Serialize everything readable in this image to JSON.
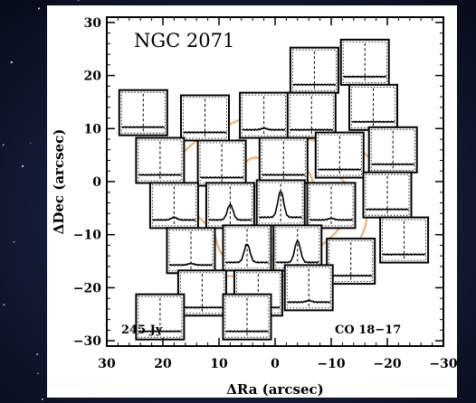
{
  "chart_data": {
    "type": "scatter",
    "title": "NGC 2071",
    "xlabel": "ΔRa (arcsec)",
    "ylabel": "ΔDec (arcsec)",
    "xlim": [
      30,
      -30
    ],
    "ylim": [
      -31,
      31
    ],
    "xticks": [
      30,
      20,
      10,
      0,
      -10,
      -20,
      -30
    ],
    "xtick_labels": [
      "30",
      "20",
      "10",
      "0",
      "−10",
      "−20",
      "−30"
    ],
    "yticks": [
      30,
      20,
      10,
      0,
      -10,
      -20,
      -30
    ],
    "ytick_labels": [
      "30",
      "20",
      "10",
      "0",
      "−10",
      "−20",
      "−30"
    ],
    "annotations": {
      "scale": "245 Jy",
      "line": "CO 18−17"
    },
    "contour_color": "#f0b070",
    "grid": false,
    "spectra_positions": [
      {
        "x": 23.5,
        "y": 13,
        "peak": 0
      },
      {
        "x": 12.5,
        "y": 12,
        "peak": 0
      },
      {
        "x": 2,
        "y": 12.5,
        "peak": 0.05
      },
      {
        "x": -7,
        "y": 21,
        "peak": 0
      },
      {
        "x": -16,
        "y": 22.5,
        "peak": 0
      },
      {
        "x": -6.5,
        "y": 12.5,
        "peak": 0
      },
      {
        "x": -17.5,
        "y": 14,
        "peak": 0
      },
      {
        "x": 20.5,
        "y": 4,
        "peak": 0
      },
      {
        "x": 9.5,
        "y": 3.5,
        "peak": 0
      },
      {
        "x": -1.5,
        "y": 4,
        "peak": 0
      },
      {
        "x": -11.5,
        "y": 5,
        "peak": 0
      },
      {
        "x": -21,
        "y": 6,
        "peak": 0
      },
      {
        "x": 18,
        "y": -4.5,
        "peak": 0.08
      },
      {
        "x": 8,
        "y": -4.5,
        "peak": 0.5
      },
      {
        "x": -1,
        "y": -4,
        "peak": 0.85
      },
      {
        "x": -10,
        "y": -4.5,
        "peak": 0.05
      },
      {
        "x": -20,
        "y": -2.5,
        "peak": 0
      },
      {
        "x": 15,
        "y": -13,
        "peak": 0.05
      },
      {
        "x": 5,
        "y": -12.5,
        "peak": 0.6
      },
      {
        "x": -4,
        "y": -12.5,
        "peak": 0.7
      },
      {
        "x": -13.5,
        "y": -15,
        "peak": 0
      },
      {
        "x": -23,
        "y": -11,
        "peak": 0
      },
      {
        "x": 13,
        "y": -21,
        "peak": 0
      },
      {
        "x": 3,
        "y": -21,
        "peak": 0.1
      },
      {
        "x": -6,
        "y": -20,
        "peak": 0.05
      },
      {
        "x": 20.5,
        "y": -25.5,
        "peak": 0
      },
      {
        "x": 5,
        "y": -25.5,
        "peak": 0
      }
    ]
  }
}
